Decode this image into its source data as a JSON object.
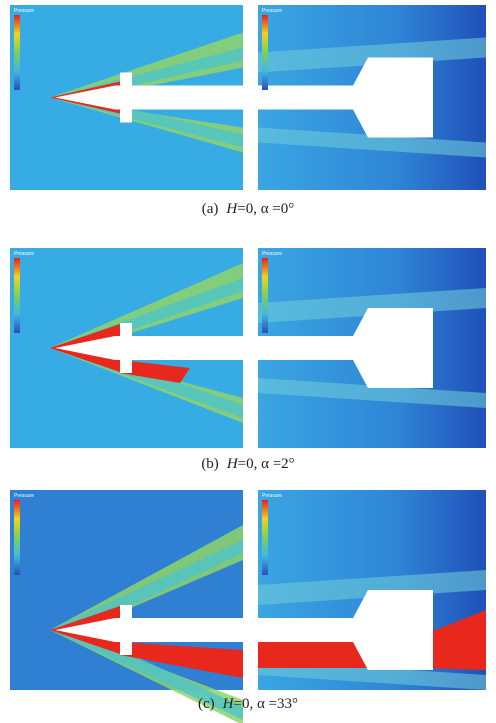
{
  "figure": {
    "panels": [
      {
        "label": "(a)",
        "variable": "H",
        "condition": "=0, α =0°",
        "legend_title_left": "Pressure",
        "legend_title_right": "Pressure"
      },
      {
        "label": "(b)",
        "variable": "H",
        "condition": "=0, α =2°",
        "legend_title_left": "Pressure",
        "legend_title_right": "Pressure"
      },
      {
        "label": "(c)",
        "variable": "H",
        "condition": "=0, α =33°",
        "legend_title_left": "Pressure",
        "legend_title_right": "Pressure"
      }
    ]
  }
}
